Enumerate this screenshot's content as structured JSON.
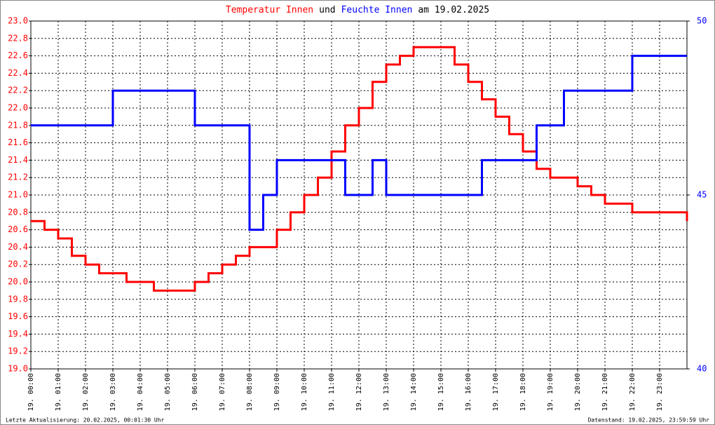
{
  "chart_data": {
    "type": "line",
    "title": [
      {
        "text": "Temperatur Innen",
        "color": "#ff0000"
      },
      {
        "text": "und",
        "color": "#000000"
      },
      {
        "text": "Feuchte Innen",
        "color": "#0000ff"
      },
      {
        "text": "am 19.02.2025",
        "color": "#000000"
      }
    ],
    "footer_left": "Letzte Aktualisierung: 20.02.2025, 00:01:30 Uhr",
    "footer_right": "Datenstand: 19.02.2025, 23:59:59 Uhr",
    "step": true,
    "grid": true,
    "x": [
      0,
      0.5,
      1,
      1.5,
      2,
      2.5,
      3,
      3.5,
      4,
      4.5,
      5,
      5.5,
      6,
      6.5,
      7,
      7.5,
      8,
      8.5,
      9,
      9.5,
      10,
      10.5,
      11,
      11.5,
      12,
      12.5,
      13,
      13.5,
      14,
      14.5,
      15,
      15.5,
      16,
      16.5,
      17,
      17.5,
      18,
      18.5,
      19,
      19.5,
      20,
      20.5,
      21,
      21.5,
      22,
      22.5,
      23,
      23.5,
      24
    ],
    "xlim": [
      0,
      24
    ],
    "xticks": [
      {
        "value": 0,
        "label": "19. 00:00"
      },
      {
        "value": 1,
        "label": "19. 01:00"
      },
      {
        "value": 2,
        "label": "19. 02:00"
      },
      {
        "value": 3,
        "label": "19. 03:00"
      },
      {
        "value": 4,
        "label": "19. 04:00"
      },
      {
        "value": 5,
        "label": "19. 05:00"
      },
      {
        "value": 6,
        "label": "19. 06:00"
      },
      {
        "value": 7,
        "label": "19. 07:00"
      },
      {
        "value": 8,
        "label": "19. 08:00"
      },
      {
        "value": 9,
        "label": "19. 09:00"
      },
      {
        "value": 10,
        "label": "19. 10:00"
      },
      {
        "value": 11,
        "label": "19. 11:00"
      },
      {
        "value": 12,
        "label": "19. 12:00"
      },
      {
        "value": 13,
        "label": "19. 13:00"
      },
      {
        "value": 14,
        "label": "19. 14:00"
      },
      {
        "value": 15,
        "label": "19. 15:00"
      },
      {
        "value": 16,
        "label": "19. 16:00"
      },
      {
        "value": 17,
        "label": "19. 17:00"
      },
      {
        "value": 18,
        "label": "19. 18:00"
      },
      {
        "value": 19,
        "label": "19. 19:00"
      },
      {
        "value": 20,
        "label": "19. 20:00"
      },
      {
        "value": 21,
        "label": "19. 21:00"
      },
      {
        "value": 22,
        "label": "19. 22:00"
      },
      {
        "value": 23,
        "label": "19. 23:00"
      }
    ],
    "ylim": [
      19.0,
      23.0
    ],
    "yticks": [
      {
        "value": 19.0,
        "label": "19.0"
      },
      {
        "value": 19.2,
        "label": "19.2"
      },
      {
        "value": 19.4,
        "label": "19.4"
      },
      {
        "value": 19.6,
        "label": "19.6"
      },
      {
        "value": 19.8,
        "label": "19.8"
      },
      {
        "value": 20.0,
        "label": "20.0"
      },
      {
        "value": 20.2,
        "label": "20.2"
      },
      {
        "value": 20.4,
        "label": "20.4"
      },
      {
        "value": 20.6,
        "label": "20.6"
      },
      {
        "value": 20.8,
        "label": "20.8"
      },
      {
        "value": 21.0,
        "label": "21.0"
      },
      {
        "value": 21.2,
        "label": "21.2"
      },
      {
        "value": 21.4,
        "label": "21.4"
      },
      {
        "value": 21.6,
        "label": "21.6"
      },
      {
        "value": 21.8,
        "label": "21.8"
      },
      {
        "value": 22.0,
        "label": "22.0"
      },
      {
        "value": 22.2,
        "label": "22.2"
      },
      {
        "value": 22.4,
        "label": "22.4"
      },
      {
        "value": 22.6,
        "label": "22.6"
      },
      {
        "value": 22.8,
        "label": "22.8"
      },
      {
        "value": 23.0,
        "label": "23.0"
      }
    ],
    "y2lim": [
      40,
      50
    ],
    "y2ticks": [
      40,
      45,
      50
    ],
    "series": [
      {
        "name": "Temperatur Innen",
        "color": "#ff0000",
        "axis": "y",
        "values": [
          20.7,
          20.6,
          20.5,
          20.3,
          20.2,
          20.1,
          20.1,
          20.0,
          20.0,
          19.9,
          19.9,
          19.9,
          20.0,
          20.1,
          20.2,
          20.3,
          20.4,
          20.4,
          20.6,
          20.8,
          21.0,
          21.2,
          21.5,
          21.8,
          22.0,
          22.3,
          22.5,
          22.6,
          22.7,
          22.7,
          22.7,
          22.5,
          22.3,
          22.1,
          21.9,
          21.7,
          21.5,
          21.3,
          21.2,
          21.2,
          21.1,
          21.0,
          20.9,
          20.9,
          20.8,
          20.8,
          20.8,
          20.8,
          20.7
        ]
      },
      {
        "name": "Feuchte Innen",
        "color": "#0000ff",
        "axis": "y2",
        "values": [
          47,
          47,
          47,
          47,
          47,
          47,
          48,
          48,
          48,
          48,
          48,
          48,
          47,
          47,
          47,
          47,
          44,
          45,
          46,
          46,
          46,
          46,
          46,
          45,
          45,
          46,
          45,
          45,
          45,
          45,
          45,
          45,
          45,
          46,
          46,
          46,
          46,
          47,
          47,
          48,
          48,
          48,
          48,
          48,
          49,
          49,
          49,
          49,
          49
        ]
      }
    ]
  }
}
